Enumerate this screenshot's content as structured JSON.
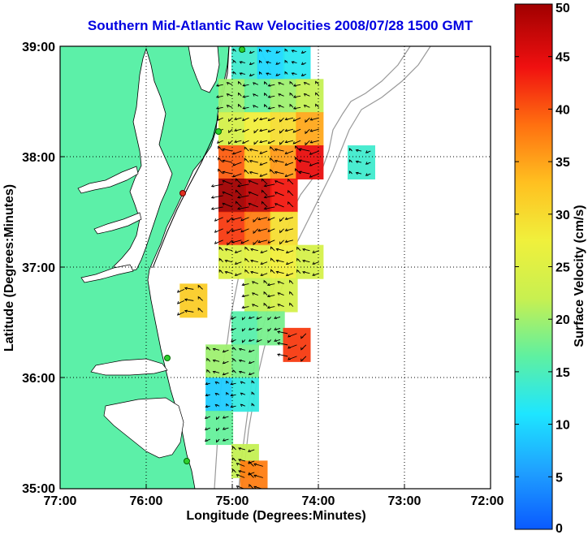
{
  "title": "Southern Mid-Atlantic Raw Velocities 2008/07/28 1500 GMT",
  "axes": {
    "xlabel": "Longitude (Degrees:Minutes)",
    "ylabel": "Latitude (Degrees:Minutes)",
    "x_ticks": [
      "77:00",
      "76:00",
      "75:00",
      "74:00",
      "73:00",
      "72:00"
    ],
    "y_ticks": [
      "39:00",
      "38:00",
      "37:00",
      "36:00",
      "35:00"
    ]
  },
  "colorbar": {
    "label": "Surface Velocity (cm/s)",
    "ticks": [
      "0",
      "5",
      "10",
      "15",
      "20",
      "25",
      "30",
      "35",
      "40",
      "45",
      "50"
    ],
    "range": [
      0,
      50
    ],
    "colors": [
      "#0a5aff",
      "#1fa0ff",
      "#1ee6ff",
      "#5ff0a0",
      "#c8f050",
      "#f0f03c",
      "#ffc020",
      "#ff7010",
      "#f01010",
      "#a00000"
    ]
  },
  "colors": {
    "land": "#5cf0a8",
    "title": "#0000e0",
    "grid": "#000000",
    "bathymetry": "#999999"
  },
  "chart_data": {
    "type": "heatmap",
    "title": "Southern Mid-Atlantic Raw Velocities 2008/07/28 1500 GMT",
    "xlabel": "Longitude (Degrees:Minutes)",
    "ylabel": "Latitude (Degrees:Minutes)",
    "xlim": [
      -77.0,
      -72.0
    ],
    "ylim": [
      35.0,
      39.0
    ],
    "colorbar_label": "Surface Velocity (cm/s)",
    "colorbar_range": [
      0,
      50
    ],
    "grid": true,
    "cells": [
      {
        "lon": -74.85,
        "lat": 38.85,
        "v": 14
      },
      {
        "lon": -74.55,
        "lat": 38.85,
        "v": 10
      },
      {
        "lon": -74.25,
        "lat": 38.85,
        "v": 12
      },
      {
        "lon": -75.0,
        "lat": 38.55,
        "v": 20
      },
      {
        "lon": -74.7,
        "lat": 38.55,
        "v": 17
      },
      {
        "lon": -74.4,
        "lat": 38.55,
        "v": 20
      },
      {
        "lon": -74.1,
        "lat": 38.55,
        "v": 22
      },
      {
        "lon": -75.0,
        "lat": 38.25,
        "v": 24
      },
      {
        "lon": -74.7,
        "lat": 38.25,
        "v": 28
      },
      {
        "lon": -74.4,
        "lat": 38.25,
        "v": 30
      },
      {
        "lon": -74.1,
        "lat": 38.25,
        "v": 35
      },
      {
        "lon": -75.0,
        "lat": 37.95,
        "v": 40
      },
      {
        "lon": -74.7,
        "lat": 37.95,
        "v": 32
      },
      {
        "lon": -74.4,
        "lat": 37.95,
        "v": 36
      },
      {
        "lon": -74.1,
        "lat": 37.95,
        "v": 45
      },
      {
        "lon": -73.5,
        "lat": 37.95,
        "v": 14
      },
      {
        "lon": -75.0,
        "lat": 37.65,
        "v": 50
      },
      {
        "lon": -74.7,
        "lat": 37.65,
        "v": 48
      },
      {
        "lon": -74.4,
        "lat": 37.65,
        "v": 44
      },
      {
        "lon": -75.0,
        "lat": 37.35,
        "v": 42
      },
      {
        "lon": -74.7,
        "lat": 37.35,
        "v": 38
      },
      {
        "lon": -74.4,
        "lat": 37.35,
        "v": 30
      },
      {
        "lon": -75.0,
        "lat": 37.05,
        "v": 25
      },
      {
        "lon": -74.7,
        "lat": 37.05,
        "v": 26
      },
      {
        "lon": -74.4,
        "lat": 37.05,
        "v": 28
      },
      {
        "lon": -74.1,
        "lat": 37.05,
        "v": 24
      },
      {
        "lon": -74.7,
        "lat": 36.75,
        "v": 22
      },
      {
        "lon": -74.4,
        "lat": 36.75,
        "v": 24
      },
      {
        "lon": -75.45,
        "lat": 36.7,
        "v": 32
      },
      {
        "lon": -74.85,
        "lat": 36.45,
        "v": 16
      },
      {
        "lon": -74.55,
        "lat": 36.45,
        "v": 18
      },
      {
        "lon": -74.25,
        "lat": 36.3,
        "v": 42
      },
      {
        "lon": -75.15,
        "lat": 36.15,
        "v": 20
      },
      {
        "lon": -74.85,
        "lat": 36.15,
        "v": 18
      },
      {
        "lon": -75.15,
        "lat": 35.85,
        "v": 9
      },
      {
        "lon": -74.85,
        "lat": 35.85,
        "v": 13
      },
      {
        "lon": -75.15,
        "lat": 35.55,
        "v": 17
      },
      {
        "lon": -74.85,
        "lat": 35.25,
        "v": 22
      },
      {
        "lon": -74.75,
        "lat": 35.1,
        "v": 38
      }
    ]
  }
}
